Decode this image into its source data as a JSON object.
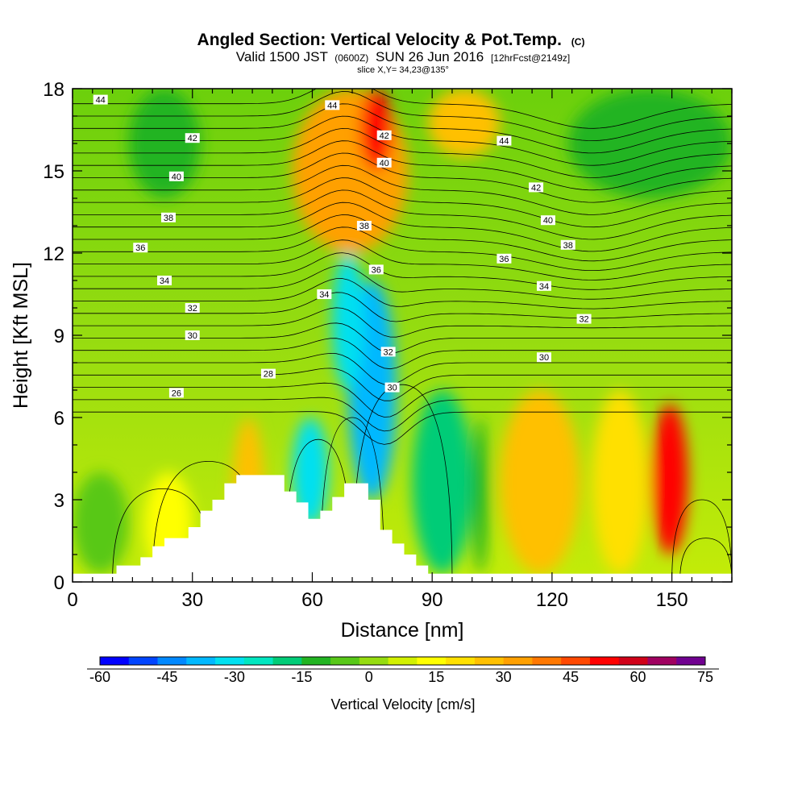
{
  "chart_data": {
    "type": "heatmap",
    "title": "Angled Section: Vertical Velocity & Pot.Temp.",
    "title_suffix": "(C)",
    "subtitle": {
      "valid": "Valid 1500 JST",
      "zulu": "(0600Z)",
      "date": "SUN 26 Jun 2016",
      "forecast": "[12hrFcst@2149z]",
      "slice": "slice X,Y= 34,23@135°"
    },
    "xlabel": "Distance [nm]",
    "ylabel": "Height [Kft MSL]",
    "xlim": [
      0,
      165
    ],
    "ylim": [
      0,
      18
    ],
    "x_ticks": [
      0,
      30,
      60,
      90,
      120,
      150
    ],
    "y_ticks": [
      0,
      3,
      6,
      9,
      12,
      15,
      18
    ],
    "colorbar": {
      "label": "Vertical Velocity [cm/s]",
      "tick_labels": [
        -60,
        -45,
        -30,
        -15,
        0,
        15,
        30,
        45,
        60,
        75
      ],
      "range": [
        -60,
        75
      ],
      "colors": [
        "#0000ff",
        "#0044ff",
        "#0088ff",
        "#00b8ff",
        "#00e0f0",
        "#00e6c0",
        "#00cc77",
        "#22b422",
        "#58c818",
        "#96dc10",
        "#d2f000",
        "#ffff00",
        "#ffe000",
        "#ffc000",
        "#ffa000",
        "#ff7800",
        "#ff4800",
        "#ff0000",
        "#d00018",
        "#a00060",
        "#700090"
      ]
    },
    "terrain": {
      "distance_nm": [
        0,
        10,
        11,
        14,
        17,
        20,
        23,
        26,
        29,
        32,
        35,
        38,
        41,
        44,
        47,
        50,
        53,
        56,
        59,
        62,
        65,
        68,
        71,
        74,
        77,
        80,
        83,
        86,
        89,
        92,
        165
      ],
      "height_kft": [
        0.3,
        0.3,
        0.6,
        0.6,
        0.9,
        1.3,
        1.6,
        1.6,
        2.0,
        2.6,
        3.0,
        3.6,
        3.9,
        3.9,
        3.9,
        3.9,
        3.3,
        2.9,
        2.3,
        2.6,
        3.1,
        3.6,
        3.6,
        3.0,
        1.9,
        1.4,
        1.0,
        0.6,
        0.3,
        0.3,
        0.3
      ]
    },
    "vertical_velocity_cells": [
      {
        "x": [
          40,
          48
        ],
        "y": [
          0.3,
          6
        ],
        "value": 28
      },
      {
        "x": [
          18,
          30
        ],
        "y": [
          0.3,
          4
        ],
        "value": 12
      },
      {
        "x": [
          69,
          81
        ],
        "y": [
          3,
          11
        ],
        "value": -40
      },
      {
        "x": [
          65,
          73
        ],
        "y": [
          7,
          12
        ],
        "value": -28
      },
      {
        "x": [
          55,
          64
        ],
        "y": [
          2,
          6
        ],
        "value": -28
      },
      {
        "x": [
          100,
          104
        ],
        "y": [
          0.3,
          6
        ],
        "value": -10
      },
      {
        "x": [
          85,
          100
        ],
        "y": [
          0.3,
          7
        ],
        "value": -20
      },
      {
        "x": [
          107,
          127
        ],
        "y": [
          0.3,
          7
        ],
        "value": 24
      },
      {
        "x": [
          130,
          144
        ],
        "y": [
          0.3,
          7
        ],
        "value": 22
      },
      {
        "x": [
          145,
          154
        ],
        "y": [
          1,
          6.5
        ],
        "value": 55
      },
      {
        "x": [
          55,
          84
        ],
        "y": [
          12,
          18
        ],
        "value": 30
      },
      {
        "x": [
          72,
          80
        ],
        "y": [
          15,
          18
        ],
        "value": 50
      },
      {
        "x": [
          89,
          107
        ],
        "y": [
          15.5,
          18
        ],
        "value": 28
      },
      {
        "x": [
          124,
          165
        ],
        "y": [
          14,
          18
        ],
        "value": -12
      },
      {
        "x": [
          14,
          32
        ],
        "y": [
          14,
          18
        ],
        "value": -12
      },
      {
        "x": [
          0,
          14
        ],
        "y": [
          0.3,
          4
        ],
        "value": -4
      }
    ],
    "potential_temperature_contours": {
      "levels": [
        26,
        28,
        30,
        32,
        34,
        36,
        38,
        40,
        42,
        44
      ],
      "labels": [
        {
          "text": "44",
          "x": 7,
          "y": 17.6
        },
        {
          "text": "42",
          "x": 30,
          "y": 16.2
        },
        {
          "text": "40",
          "x": 26,
          "y": 14.8
        },
        {
          "text": "38",
          "x": 24,
          "y": 13.3
        },
        {
          "text": "36",
          "x": 17,
          "y": 12.2
        },
        {
          "text": "34",
          "x": 23,
          "y": 11.0
        },
        {
          "text": "32",
          "x": 30,
          "y": 10.0
        },
        {
          "text": "30",
          "x": 30,
          "y": 9.0
        },
        {
          "text": "28",
          "x": 49,
          "y": 7.6
        },
        {
          "text": "26",
          "x": 26,
          "y": 6.9
        },
        {
          "text": "44",
          "x": 65,
          "y": 17.4
        },
        {
          "text": "42",
          "x": 78,
          "y": 16.3
        },
        {
          "text": "40",
          "x": 78,
          "y": 15.3
        },
        {
          "text": "38",
          "x": 73,
          "y": 13.0
        },
        {
          "text": "36",
          "x": 76,
          "y": 11.4
        },
        {
          "text": "34",
          "x": 63,
          "y": 10.5
        },
        {
          "text": "32",
          "x": 79,
          "y": 8.4
        },
        {
          "text": "30",
          "x": 80,
          "y": 7.1
        },
        {
          "text": "44",
          "x": 108,
          "y": 16.1
        },
        {
          "text": "42",
          "x": 116,
          "y": 14.4
        },
        {
          "text": "40",
          "x": 119,
          "y": 13.2
        },
        {
          "text": "38",
          "x": 124,
          "y": 12.3
        },
        {
          "text": "36",
          "x": 108,
          "y": 11.8
        },
        {
          "text": "34",
          "x": 118,
          "y": 10.8
        },
        {
          "text": "32",
          "x": 128,
          "y": 9.6
        },
        {
          "text": "30",
          "x": 118,
          "y": 8.2
        }
      ]
    }
  }
}
